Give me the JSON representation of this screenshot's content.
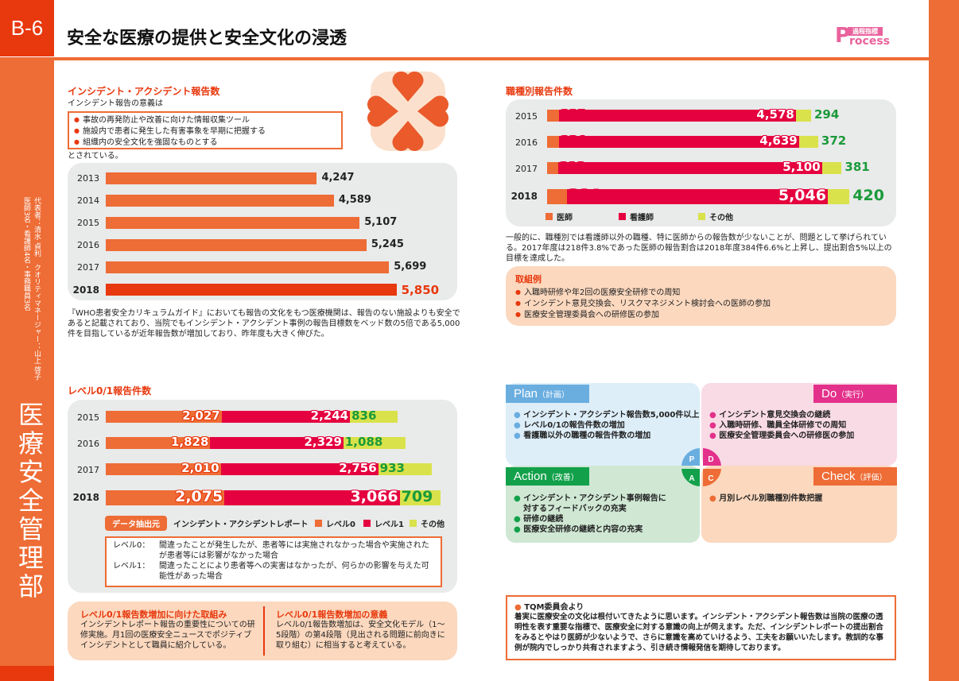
{
  "header": {
    "code": "B-6",
    "title": "安全な医療の提供と安全文化の浸透",
    "badge_top": "過程指標",
    "badge_main": "Process"
  },
  "sidebar": {
    "department": "医療安全管理部",
    "representative": "代表者：清水 貞利　クオリティマネージャー：山上 啓子",
    "members": "医師3名・看護師4名・事務職員3名"
  },
  "colors": {
    "orange": "#ee6c35",
    "level1_red": "#e5003f",
    "other_yellow": "#d9e24a",
    "green_text": "#1a9a3a",
    "plan": "#6aaee0",
    "do": "#e3318b",
    "action": "#12a14a",
    "check": "#ee6c35"
  },
  "incident": {
    "heading": "インシデント・アクシデント報告数",
    "intro": "インシデント報告の意義は",
    "points": [
      "事故の再発防止や改善に向けた情報収集ツール",
      "施設内で患者に発生した有害事象を早期に把握する",
      "組織内の安全文化を強固なものとする"
    ],
    "outro": "とされている。",
    "note": "『WHO患者安全カリキュラムガイド』においても報告の文化をもつ医療機関は、報告のない施設よりも安全であると記載されており、当院でもインシデント・アクシデント事例の報告目標数をベッド数の5倍である5,000件を目指しているが近年報告数が増加しており、昨年度も大きく伸びた。"
  },
  "jobtype": {
    "heading": "職種別報告件数",
    "note": "一般的に、職種別では看護師以外の職種、特に医師からの報告数が少ないことが、問題として挙げられている。2017年度は218件3.8%であった医師の報告割合は2018年度384件6.6%と上昇し、提出割合5%以上の目標を達成した。",
    "examples_title": "取組例",
    "examples": [
      "入職時研修や年2回の医療安全研修での周知",
      "インシデント意見交換会、リスクマネジメント検討会への医師の参加",
      "医療安全管理委員会への研修医の参加"
    ]
  },
  "levels": {
    "heading": "レベル0/1報告件数",
    "source_label": "データ抽出元",
    "source": "インシデント・アクシデントレポート",
    "definitions": [
      {
        "term": "レベル0：",
        "text": "間違ったことが発生したが、患者等には実施されなかった場合や実施されたが患者等には影響がなかった場合"
      },
      {
        "term": "レベル1：",
        "text": "間違ったことにより患者等への実害はなかったが、何らかの影響を与えた可能性があった場合"
      }
    ],
    "box1_title": "レベル0/1報告数増加に向けた取組み",
    "box1_text": "インシデントレポート報告の重要性についての研修実施。月1回の医療安全ニュースでポジティブインシデントとして職員に紹介している。",
    "box2_title": "レベル0/1報告数増加の意義",
    "box2_text": "レベル0/1報告数増加は、安全文化モデル（1～5段階）の第4段階（見出される問題に前向きに取り組む）に相当すると考えている。"
  },
  "pdca": {
    "plan": {
      "title": "Plan",
      "sub": "（計画）",
      "letter": "P",
      "items": [
        "インシデント・アクシデント報告数5,000件以上",
        "レベル0/1の報告件数の増加",
        "看護職以外の職種の報告件数の増加"
      ]
    },
    "do": {
      "title": "Do",
      "sub": "（実行）",
      "letter": "D",
      "items": [
        "インシデント意見交換会の継続",
        "入職時研修、職員全体研修での周知",
        "医療安全管理委員会への研修医の参加"
      ]
    },
    "action": {
      "title": "Action",
      "sub": "（改善）",
      "letter": "A",
      "items": [
        "インシデント・アクシデント事例報告に対するフィードバックの充実",
        "研修の継続",
        "医療安全研修の継続と内容の充実"
      ]
    },
    "check": {
      "title": "Check",
      "sub": "（評価）",
      "letter": "C",
      "items": [
        "月別レベル別職種別件数把握"
      ]
    }
  },
  "tqm": {
    "title": "TQM委員会より",
    "text": "着実に医療安全の文化は根付いてきたように思います。インシデント・アクシデント報告数は当院の医療の透明性を表す重要な指標で、医療安全に対する意識の向上が伺えます。ただ、インシデントレポートの提出割合をみるとやはり医師が少ないようで、さらに意識を高めていけるよう、工夫をお願いいたします。教訓的な事例が院内でしっかり共有されますよう、引き続き情報発信を期待しております。"
  },
  "chart_data": [
    {
      "type": "bar",
      "orientation": "horizontal",
      "categories": [
        "2013",
        "2014",
        "2015",
        "2016",
        "2017",
        "2018"
      ],
      "values": [
        4247,
        4589,
        5107,
        5245,
        5699,
        5850
      ],
      "labels": [
        "4,247",
        "4,589",
        "5,107",
        "5,245",
        "5,699",
        "5,850"
      ]
    },
    {
      "type": "bar",
      "stacked": true,
      "orientation": "horizontal",
      "categories": [
        "2015",
        "2016",
        "2017",
        "2018"
      ],
      "series": [
        {
          "name": "医師",
          "values": [
            235,
            234,
            218,
            384
          ],
          "labels": [
            "235",
            "234",
            "218",
            "384"
          ]
        },
        {
          "name": "看護師",
          "values": [
            4578,
            4639,
            5100,
            5046
          ],
          "labels": [
            "4,578",
            "4,639",
            "5,100",
            "5,046"
          ]
        },
        {
          "name": "その他",
          "values": [
            294,
            372,
            381,
            420
          ],
          "labels": [
            "294",
            "372",
            "381",
            "420"
          ]
        }
      ]
    },
    {
      "type": "bar",
      "stacked": true,
      "orientation": "horizontal",
      "categories": [
        "2015",
        "2016",
        "2017",
        "2018"
      ],
      "series": [
        {
          "name": "レベル0",
          "values": [
            2027,
            1828,
            2010,
            2075
          ],
          "labels": [
            "2,027",
            "1,828",
            "2,010",
            "2,075"
          ]
        },
        {
          "name": "レベル1",
          "values": [
            2244,
            2329,
            2756,
            3066
          ],
          "labels": [
            "2,244",
            "2,329",
            "2,756",
            "3,066"
          ]
        },
        {
          "name": "その他",
          "values": [
            836,
            1088,
            933,
            709
          ],
          "labels": [
            "836",
            "1,088",
            "933",
            "709"
          ]
        }
      ]
    }
  ]
}
